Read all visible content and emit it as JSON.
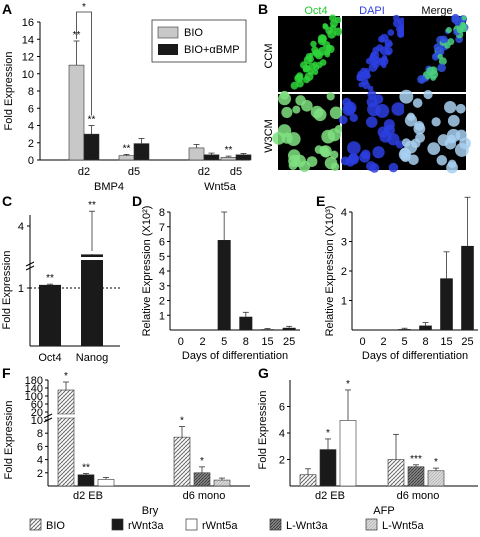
{
  "panels": {
    "A": "A",
    "B": "B",
    "C": "C",
    "D": "D",
    "E": "E",
    "F": "F",
    "G": "G"
  },
  "microscopy": {
    "col_headers": [
      "Oct4",
      "DAPI",
      "Merge"
    ],
    "row_labels": [
      "CCM",
      "W3CM"
    ],
    "colors": {
      "oct4": "#22c830",
      "dapi": "#3040e0",
      "merge_text": "#111111",
      "oct4_fill": "#1a9a20",
      "dapi_fill": "#1018a0"
    }
  },
  "chart_data": [
    {
      "panel": "A",
      "type": "bar",
      "ylabel": "Fold Expression",
      "ylim": [
        0,
        16
      ],
      "yticks": [
        0,
        2,
        4,
        6,
        8,
        10,
        12,
        14,
        16
      ],
      "groups": [
        "BMP4",
        "Wnt5a"
      ],
      "categories": [
        "d2",
        "d5",
        "d2",
        "d5"
      ],
      "series": [
        {
          "name": "BIO",
          "color": "#c8c8c8",
          "values": [
            11.0,
            0.5,
            1.4,
            0.3
          ],
          "errors": [
            2.8,
            0.15,
            0.4,
            0.15
          ],
          "stars": [
            "**",
            "**",
            "",
            "**"
          ]
        },
        {
          "name": "BIO+αBMP",
          "color": "#1a1a1a",
          "values": [
            3.0,
            1.9,
            0.6,
            0.6
          ],
          "errors": [
            1.0,
            0.6,
            0.2,
            0.15
          ],
          "stars": [
            "**",
            "",
            "",
            ""
          ]
        }
      ],
      "bracket_star": "*",
      "legend": "top-right"
    },
    {
      "panel": "C",
      "type": "bar",
      "ylabel": "Fold Expression",
      "yticks": [
        "1",
        "4"
      ],
      "categories": [
        "Oct4",
        "Nanog"
      ],
      "values": [
        1.13,
        2.4
      ],
      "errors": [
        0.03,
        1.8
      ],
      "stars": [
        "**",
        "**"
      ],
      "reference_line": 1,
      "color": "#1a1a1a",
      "axis_break": true
    },
    {
      "panel": "D",
      "type": "bar",
      "ylabel": "Relative Expression (X10²)",
      "xlabel": "Days of differentiation",
      "ylim": [
        0,
        8
      ],
      "yticks": [
        1,
        2,
        3,
        4,
        5,
        6,
        7,
        8
      ],
      "categories": [
        "0",
        "2",
        "5",
        "8",
        "15",
        "25"
      ],
      "values": [
        0,
        0,
        6.1,
        0.9,
        0.05,
        0.15
      ],
      "errors": [
        0,
        0,
        1.9,
        0.3,
        0.05,
        0.1
      ],
      "color": "#1a1a1a"
    },
    {
      "panel": "E",
      "type": "bar",
      "ylabel": "Relative Expression (X10³)",
      "xlabel": "Days of differentiation",
      "ylim": [
        0,
        4
      ],
      "yticks": [
        1,
        2,
        3,
        4
      ],
      "categories": [
        "0",
        "2",
        "5",
        "8",
        "15",
        "25"
      ],
      "values": [
        0,
        0,
        0.03,
        0.15,
        1.75,
        2.85
      ],
      "errors": [
        0,
        0,
        0.03,
        0.1,
        0.9,
        1.65
      ],
      "color": "#1a1a1a"
    },
    {
      "panel": "F",
      "type": "bar",
      "ylabel": "Fold Expression",
      "xlabel": "Bry",
      "yticks_lower": [
        2,
        4,
        6,
        8,
        10
      ],
      "yticks_upper": [
        20,
        60,
        100,
        140,
        180
      ],
      "groups": [
        "d2 EB",
        "d6 mono"
      ],
      "group_series": [
        {
          "group": "d2 EB",
          "bars": [
            {
              "series": "BIO",
              "value": 130,
              "error": 40,
              "star": "*"
            },
            {
              "series": "rWnt3a",
              "value": 1.7,
              "error": 0.2,
              "star": "**"
            },
            {
              "series": "rWnt5a",
              "value": 1.0,
              "error": 0.3,
              "star": ""
            }
          ]
        },
        {
          "group": "d6 mono",
          "bars": [
            {
              "series": "BIO",
              "value": 7.4,
              "error": 1.6,
              "star": "*"
            },
            {
              "series": "L-Wnt3a",
              "value": 2.0,
              "error": 0.9,
              "star": "*"
            },
            {
              "series": "L-Wnt5a",
              "value": 0.9,
              "error": 0.3,
              "star": ""
            }
          ]
        }
      ]
    },
    {
      "panel": "G",
      "type": "bar",
      "ylabel": "Fold Expression",
      "xlabel": "AFP",
      "ylim": [
        0,
        8
      ],
      "yticks": [
        2,
        4,
        6
      ],
      "groups": [
        "d2 EB",
        "d6 mono"
      ],
      "group_series": [
        {
          "group": "d2 EB",
          "bars": [
            {
              "series": "BIO",
              "value": 0.85,
              "error": 0.45,
              "star": ""
            },
            {
              "series": "rWnt3a",
              "value": 2.75,
              "error": 0.8,
              "star": "*"
            },
            {
              "series": "rWnt5a",
              "value": 4.95,
              "error": 2.3,
              "star": "*"
            }
          ]
        },
        {
          "group": "d6 mono",
          "bars": [
            {
              "series": "BIO",
              "value": 2.0,
              "error": 1.9,
              "star": ""
            },
            {
              "series": "L-Wnt3a",
              "value": 1.45,
              "error": 0.15,
              "star": "***"
            },
            {
              "series": "L-Wnt5a",
              "value": 1.15,
              "error": 0.2,
              "star": "*"
            }
          ]
        }
      ]
    }
  ],
  "bottom_legend": [
    {
      "label": "BIO",
      "style": "hatch"
    },
    {
      "label": "rWnt3a",
      "style": "black"
    },
    {
      "label": "rWnt5a",
      "style": "white"
    },
    {
      "label": "L-Wnt3a",
      "style": "darkhatch"
    },
    {
      "label": "L-Wnt5a",
      "style": "lightgray"
    }
  ]
}
